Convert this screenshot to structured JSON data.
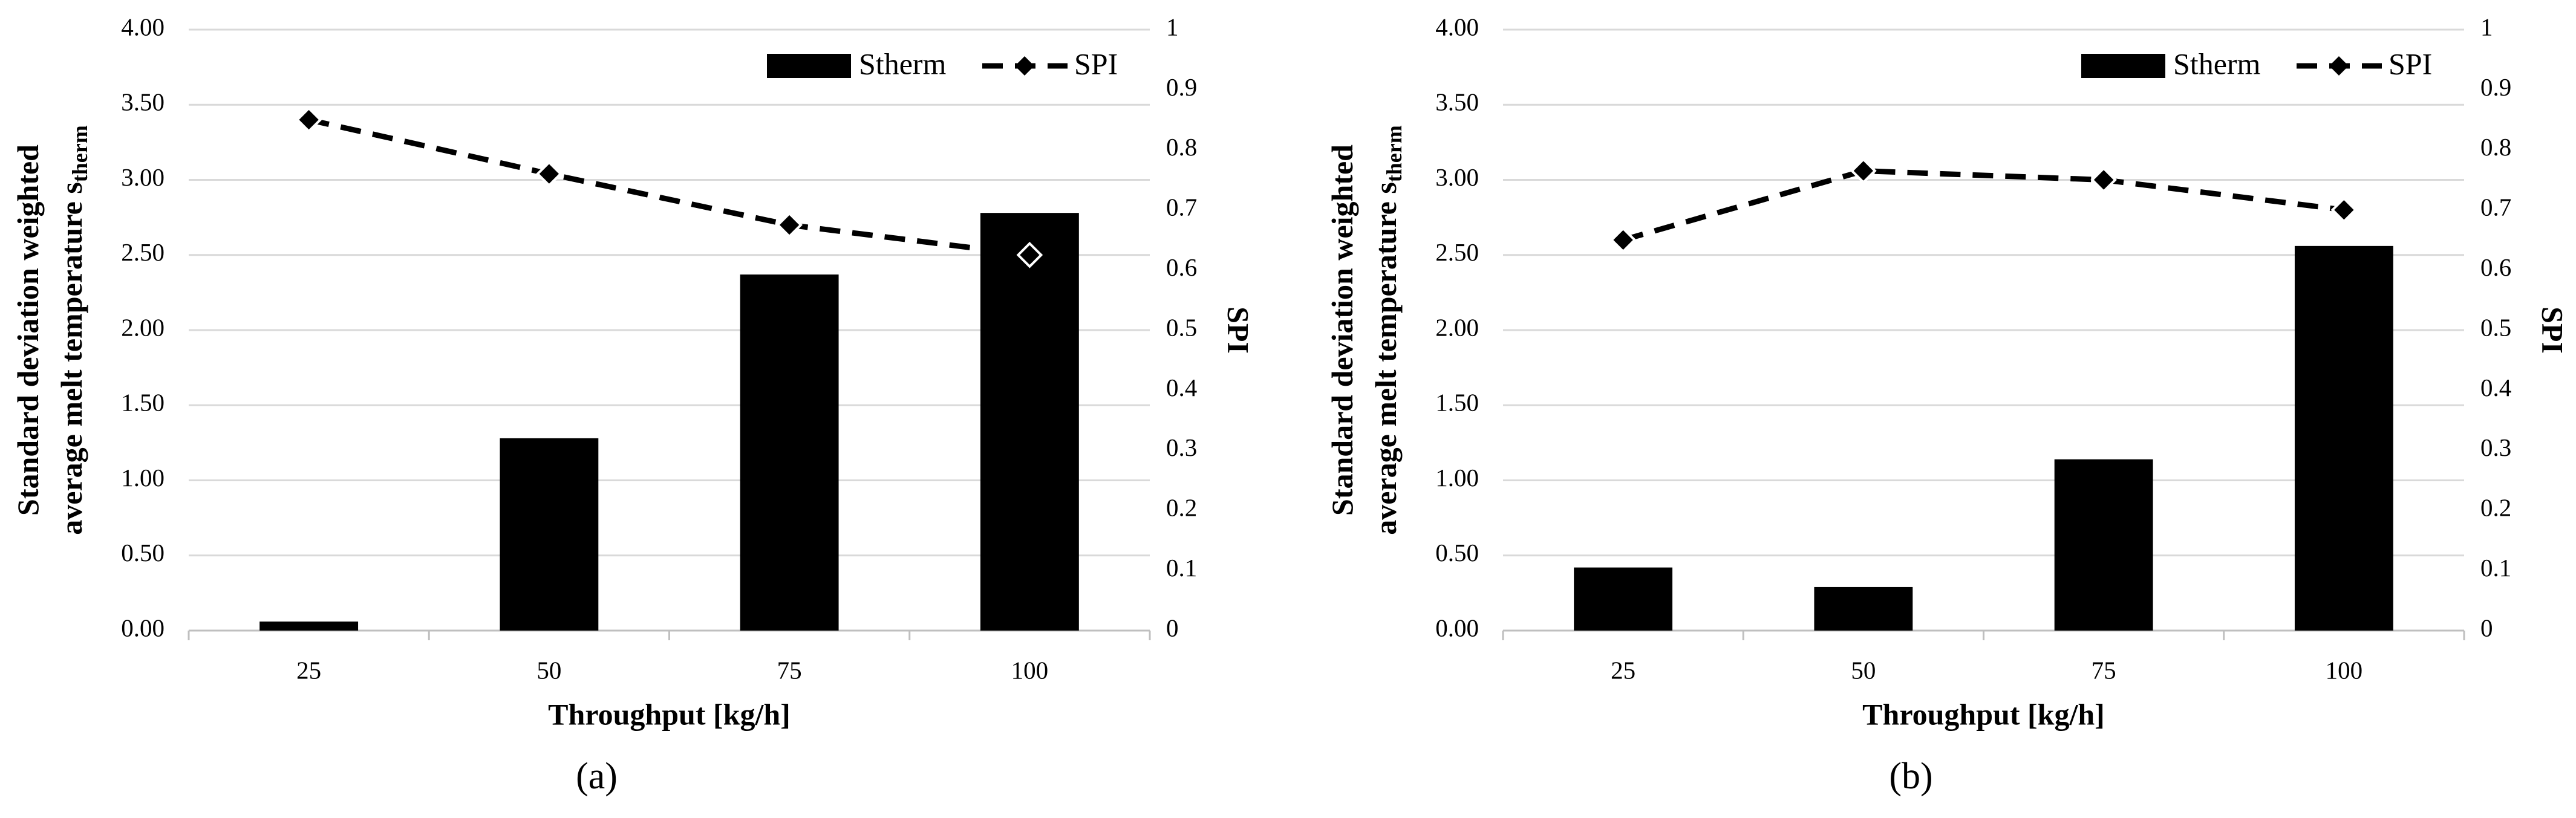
{
  "chart_data": [
    {
      "type": "bar_line",
      "caption": "(a)",
      "categories": [
        "25",
        "50",
        "75",
        "100"
      ],
      "series": [
        {
          "name": "Stherm",
          "color": "#000000",
          "values": [
            0.06,
            1.28,
            2.37,
            2.78
          ]
        },
        {
          "name": "SPI",
          "color": "#000000",
          "axis": "y2",
          "line_style": "dashed",
          "marker": "diamond",
          "values": [
            0.85,
            0.76,
            0.675,
            0.625
          ]
        }
      ],
      "xlabel": "Throughput [kg/h]",
      "ylabel": [
        "Standard deviation weighted",
        "average melt temperature s"
      ],
      "ylabel_subscript": "therm",
      "y2label": "SPI",
      "ylim": [
        0,
        4
      ],
      "yticks": [
        {
          "value": 0,
          "label": "0.00"
        },
        {
          "value": 0.5,
          "label": "0.50"
        },
        {
          "value": 1,
          "label": "1.00"
        },
        {
          "value": 1.5,
          "label": "1.50"
        },
        {
          "value": 2,
          "label": "2.00"
        },
        {
          "value": 2.5,
          "label": "2.50"
        },
        {
          "value": 3,
          "label": "3.00"
        },
        {
          "value": 3.5,
          "label": "3.50"
        },
        {
          "value": 4,
          "label": "4.00"
        }
      ],
      "y2lim": [
        0,
        1
      ],
      "y2ticks": [
        0,
        0.1,
        0.2,
        0.3,
        0.4,
        0.5,
        0.6,
        0.7,
        0.8,
        0.9,
        1
      ],
      "grid": true,
      "legend": "top-right"
    },
    {
      "type": "bar_line",
      "caption": "(b)",
      "categories": [
        "25",
        "50",
        "75",
        "100"
      ],
      "series": [
        {
          "name": "Stherm",
          "color": "#000000",
          "values": [
            0.42,
            0.29,
            1.14,
            2.56
          ]
        },
        {
          "name": "SPI",
          "color": "#000000",
          "axis": "y2",
          "line_style": "dashed",
          "marker": "diamond",
          "values": [
            0.65,
            0.765,
            0.75,
            0.7
          ]
        }
      ],
      "xlabel": "Throughput [kg/h]",
      "ylabel": [
        "Standard deviation weighted",
        "average melt temperature s"
      ],
      "ylabel_subscript": "therm",
      "y2label": "SPI",
      "ylim": [
        0,
        4
      ],
      "yticks": [
        {
          "value": 0,
          "label": "0.00"
        },
        {
          "value": 0.5,
          "label": "0.50"
        },
        {
          "value": 1,
          "label": "1.00"
        },
        {
          "value": 1.5,
          "label": "1.50"
        },
        {
          "value": 2,
          "label": "2.00"
        },
        {
          "value": 2.5,
          "label": "2.50"
        },
        {
          "value": 3,
          "label": "3.00"
        },
        {
          "value": 3.5,
          "label": "3.50"
        },
        {
          "value": 4,
          "label": "4.00"
        }
      ],
      "y2lim": [
        0,
        1
      ],
      "y2ticks": [
        0,
        0.1,
        0.2,
        0.3,
        0.4,
        0.5,
        0.6,
        0.7,
        0.8,
        0.9,
        1
      ],
      "grid": true,
      "legend": "top-right"
    }
  ]
}
